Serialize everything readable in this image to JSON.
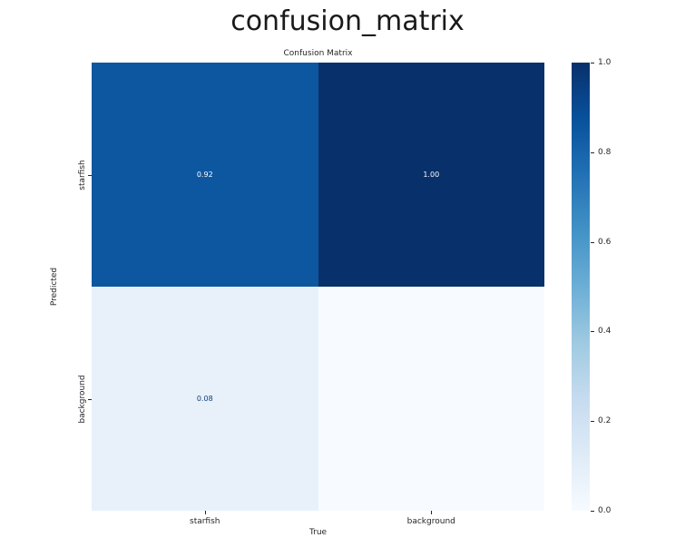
{
  "page": {
    "title": "confusion_matrix"
  },
  "chart_data": {
    "type": "heatmap",
    "title": "Confusion Matrix",
    "xlabel": "True",
    "ylabel": "Predicted",
    "x_categories": [
      "starfish",
      "background"
    ],
    "y_categories": [
      "starfish",
      "background"
    ],
    "values": [
      [
        0.92,
        1.0
      ],
      [
        0.08,
        null
      ]
    ],
    "cell_labels": [
      [
        "0.92",
        "1.00"
      ],
      [
        "0.08",
        ""
      ]
    ],
    "cell_colors": [
      [
        "#0d57a1",
        "#08306b"
      ],
      [
        "#e8f1fa",
        "#f7fbff"
      ]
    ],
    "cell_text_colors": [
      [
        "#ffffff",
        "#ffffff"
      ],
      [
        "#123c77",
        "#123c77"
      ]
    ],
    "colormap": "Blues",
    "grid": false,
    "legend_position": "right-colorbar",
    "colorbar": {
      "min": 0.0,
      "max": 1.0,
      "tick_labels": [
        "1.0",
        "0.8",
        "0.6",
        "0.4",
        "0.2",
        "0.0"
      ],
      "gradient_stops_top_to_bottom": [
        "#08306b",
        "#08519c",
        "#2171b5",
        "#4292c6",
        "#6baed6",
        "#9ecae1",
        "#c6dbef",
        "#deebf7",
        "#f7fbff"
      ]
    }
  }
}
